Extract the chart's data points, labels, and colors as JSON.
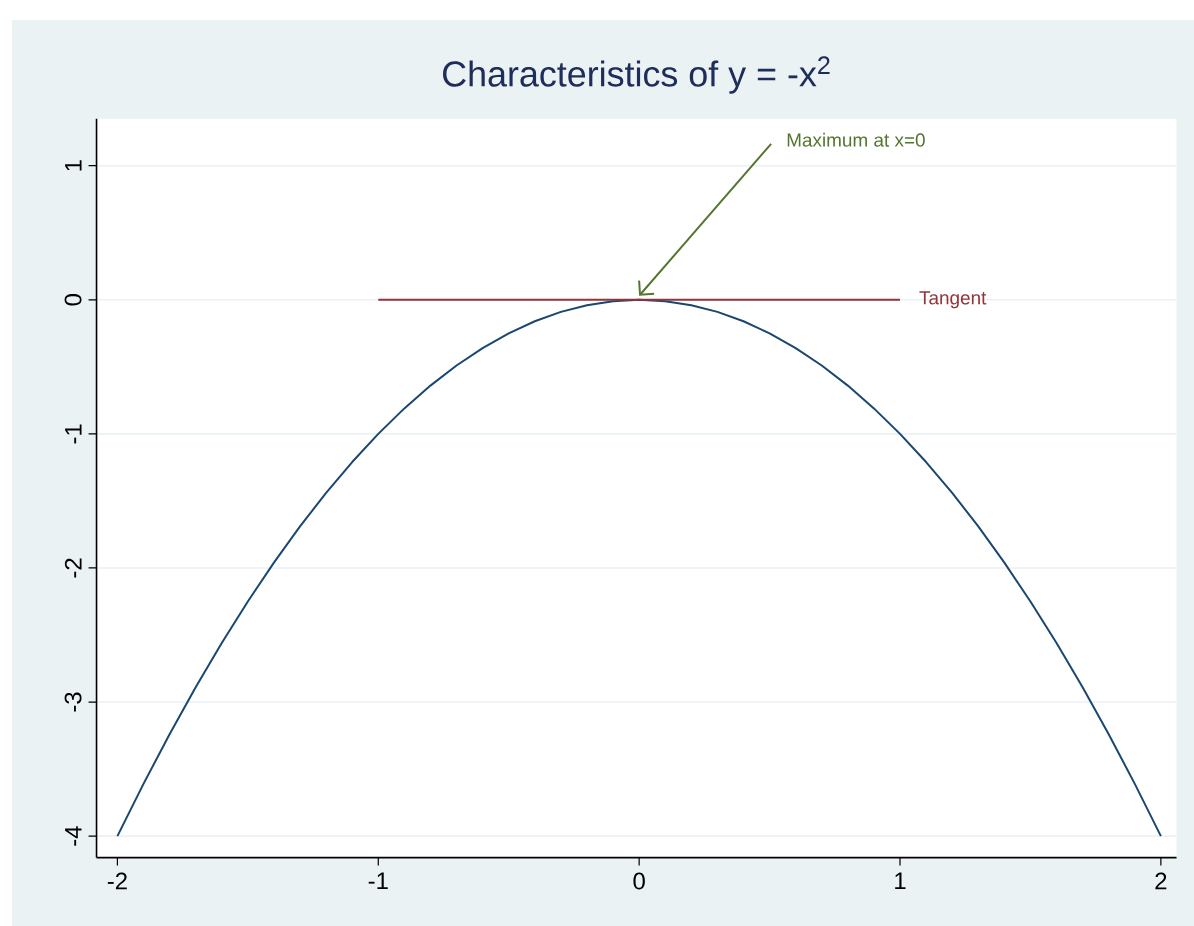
{
  "chart_data": {
    "type": "line",
    "title": "Characteristics of y = -x$^{2}$",
    "xlim": [
      -2.08,
      2.06
    ],
    "ylim": [
      -4.16,
      1.35
    ],
    "xticks": [
      -2,
      -1,
      0,
      1,
      2
    ],
    "yticks": [
      -4,
      -3,
      -2,
      -1,
      0,
      1
    ],
    "grid": "y",
    "series": [
      {
        "color": "#1a476f",
        "x": [
          -2,
          -1.9,
          -1.8,
          -1.7,
          -1.6,
          -1.5,
          -1.4,
          -1.3,
          -1.2,
          -1.1,
          -1,
          -0.9,
          -0.8,
          -0.7,
          -0.6,
          -0.5,
          -0.4,
          -0.3,
          -0.2,
          -0.1,
          0,
          0.1,
          0.2,
          0.3,
          0.4,
          0.5,
          0.6,
          0.7,
          0.8,
          0.9,
          1,
          1.1,
          1.2,
          1.3,
          1.4,
          1.5,
          1.6,
          1.7,
          1.8,
          1.9,
          2
        ],
        "values": [
          -4,
          -3.61,
          -3.24,
          -2.89,
          -2.56,
          -2.25,
          -1.96,
          -1.69,
          -1.44,
          -1.21,
          -1,
          -0.81,
          -0.64,
          -0.49,
          -0.36,
          -0.25,
          -0.16,
          -0.09,
          -0.04,
          -0.01,
          0,
          -0.01,
          -0.04,
          -0.09,
          -0.16,
          -0.25,
          -0.36,
          -0.49,
          -0.64,
          -0.81,
          -1,
          -1.21,
          -1.44,
          -1.69,
          -1.96,
          -2.25,
          -2.56,
          -2.89,
          -3.24,
          -3.61,
          -4
        ]
      },
      {
        "name": "Tangent",
        "color": "#90353b",
        "x": [
          -1,
          1
        ],
        "values": [
          0,
          0
        ]
      }
    ],
    "annotations": [
      {
        "text": "Maximum at x=0",
        "x": 0,
        "y": 0
      }
    ]
  }
}
